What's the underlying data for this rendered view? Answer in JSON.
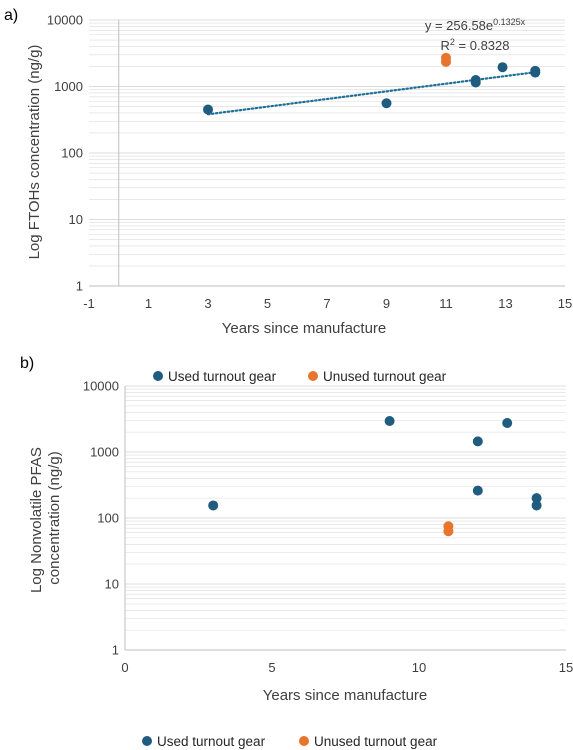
{
  "colors": {
    "used": "#1f5c80",
    "unused": "#e8742d",
    "grid": "#dcdcdc",
    "axis": "#bfbfbf",
    "trend": "#1f6f99"
  },
  "bottom_legend": {
    "used": "Used turnout gear",
    "unused": "Unused turnout gear"
  },
  "chart_data": [
    {
      "type": "scatter",
      "panel_label": "a)",
      "xlabel": "Years since manufacture",
      "ylabel": "Log FTOHs concentration (ng/g)",
      "x_scale": "linear",
      "y_scale": "log",
      "xlim": [
        -1,
        15
      ],
      "ylim": [
        1,
        10000
      ],
      "x_ticks": [
        "-1",
        "1",
        "3",
        "5",
        "7",
        "9",
        "11",
        "13",
        "15"
      ],
      "y_ticks": [
        "1",
        "10",
        "100",
        "1000",
        "10000"
      ],
      "grid": "horizontal major and minor lines",
      "legend": "none",
      "series": [
        {
          "name": "Used turnout gear",
          "color_key": "used",
          "points": [
            [
              3,
              450
            ],
            [
              9,
              560
            ],
            [
              12,
              1150
            ],
            [
              12,
              1250
            ],
            [
              12.9,
              1950
            ],
            [
              14,
              1620
            ],
            [
              14,
              1720
            ]
          ]
        },
        {
          "name": "Unused turnout gear",
          "color_key": "unused",
          "points": [
            [
              11,
              2350
            ],
            [
              11,
              2700
            ]
          ]
        }
      ],
      "trendline": {
        "type": "exponential",
        "a": 256.58,
        "b": 0.1325,
        "x_range": [
          3,
          14
        ],
        "equation_main": "y = 256.58e",
        "equation_exp": "0.1325x",
        "r2_main": "R",
        "r2_sup": "2",
        "r2_value": " = 0.8328"
      }
    },
    {
      "type": "scatter",
      "panel_label": "b)",
      "xlabel": "Years since manufacture",
      "ylabel_line1": "Log Nonvolatile PFAS",
      "ylabel_line2": "concentration (ng/g)",
      "x_scale": "linear",
      "y_scale": "log",
      "xlim": [
        0,
        15
      ],
      "ylim": [
        1,
        10000
      ],
      "x_ticks": [
        "0",
        "5",
        "10",
        "15"
      ],
      "y_ticks": [
        "1",
        "10",
        "100",
        "1000",
        "10000"
      ],
      "grid": "horizontal major and minor lines",
      "legend": "top",
      "legend_entries": [
        "Used turnout gear",
        "Unused turnout gear"
      ],
      "series": [
        {
          "name": "Used turnout gear",
          "color_key": "used",
          "points": [
            [
              3,
              155
            ],
            [
              9,
              2950
            ],
            [
              12,
              1450
            ],
            [
              12,
              260
            ],
            [
              13,
              2750
            ],
            [
              14,
              200
            ],
            [
              14,
              155
            ]
          ]
        },
        {
          "name": "Unused turnout gear",
          "color_key": "unused",
          "points": [
            [
              11,
              75
            ],
            [
              11,
              63
            ]
          ]
        }
      ]
    }
  ]
}
